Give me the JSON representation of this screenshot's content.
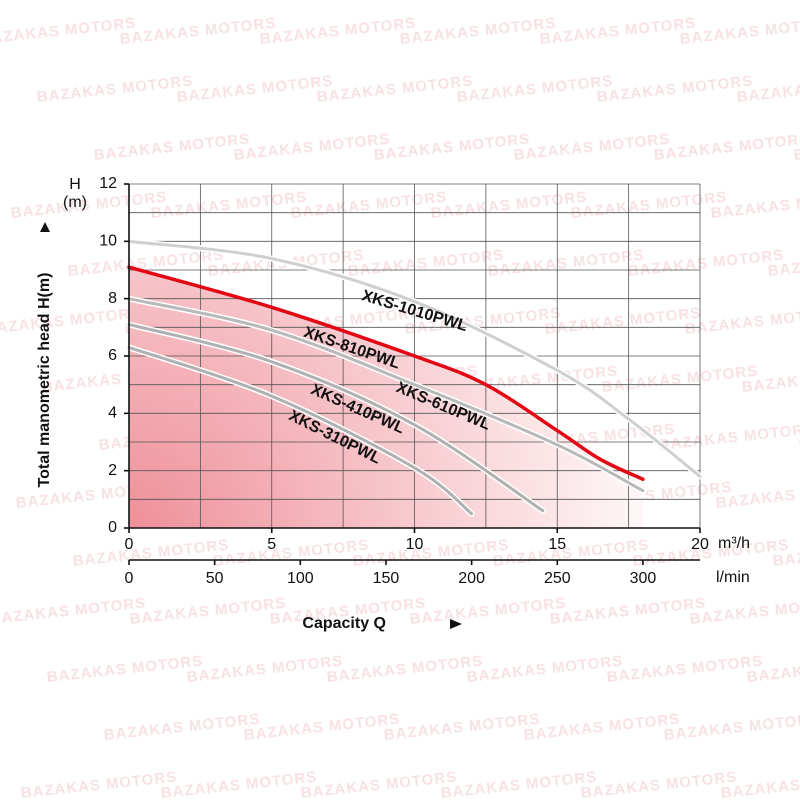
{
  "watermark": "BAZAKAS MOTORS",
  "chart_data": {
    "type": "line",
    "y_label_top": "H",
    "y_label_unit": "(m)",
    "y_label": "Total manometric head H(m)",
    "x_label": "Capacity Q",
    "x_unit": "m³/h",
    "x2_unit": "l/min",
    "xlim": [
      0,
      20
    ],
    "xticks": [
      0,
      5,
      10,
      15,
      20
    ],
    "xgrid": [
      0,
      2.5,
      5,
      7.5,
      10,
      12.5,
      15,
      17.5,
      20
    ],
    "x2lim": [
      0,
      333.3
    ],
    "x2ticks": [
      0,
      50,
      100,
      150,
      200,
      250,
      300
    ],
    "ylim": [
      0,
      12
    ],
    "yticks": [
      0,
      2,
      4,
      6,
      8,
      10,
      12
    ],
    "ygrid": [
      0,
      1,
      2,
      3,
      4,
      5,
      6,
      7,
      8,
      9,
      10,
      11,
      12
    ],
    "grid": true,
    "series": [
      {
        "name": "XKS-1010PWL",
        "color": "#cfcfcf",
        "x": [
          0,
          5,
          10,
          15,
          17.5,
          20
        ],
        "values": [
          10,
          9.4,
          7.9,
          5.5,
          3.8,
          1.8
        ]
      },
      {
        "name": "XKS-610PWL",
        "color": "#b9b9b9",
        "x": [
          0,
          5,
          10,
          15,
          18
        ],
        "values": [
          8,
          6.9,
          5.0,
          2.9,
          1.3
        ]
      },
      {
        "name": "XKS-410PWL",
        "color": "#b0b0b0",
        "x": [
          0,
          5,
          10,
          14.5
        ],
        "values": [
          7.1,
          5.8,
          3.6,
          0.6
        ]
      },
      {
        "name": "XKS-310PWL",
        "color": "#b0b0b0",
        "x": [
          0,
          5,
          10,
          12
        ],
        "values": [
          6.3,
          4.6,
          2.1,
          0.5
        ]
      },
      {
        "name": "XKS-810PWL",
        "color": "#e30613",
        "x": [
          0,
          5,
          10,
          12.5,
          15,
          16.5,
          18
        ],
        "values": [
          9.1,
          7.7,
          6.0,
          5.0,
          3.4,
          2.4,
          1.7
        ],
        "highlight": true
      }
    ]
  }
}
